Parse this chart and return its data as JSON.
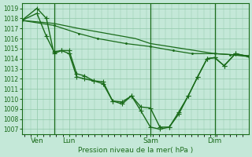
{
  "title": "",
  "xlabel": "Pression niveau de la mer( hPa )",
  "ylabel": "",
  "bg_color": "#c4e8d8",
  "grid_color": "#90c8a8",
  "line_color": "#1a6b1a",
  "tick_label_color": "#1a6b1a",
  "axis_label_color": "#1a6b1a",
  "ylim": [
    1006.5,
    1019.5
  ],
  "yticks": [
    1007,
    1008,
    1009,
    1010,
    1011,
    1012,
    1013,
    1014,
    1015,
    1016,
    1017,
    1018,
    1019
  ],
  "xlim": [
    0,
    120
  ],
  "vline_x": [
    17,
    68,
    102
  ],
  "vline_color": "#1a6b1a",
  "xtick_positions": [
    8,
    25,
    68,
    102
  ],
  "xtick_labels": [
    "Ven",
    "Lun",
    "Sam",
    "Dim"
  ],
  "series": [
    {
      "x": [
        0,
        17,
        30,
        45,
        60,
        68,
        85,
        102,
        120
      ],
      "y": [
        1017.8,
        1017.5,
        1017.0,
        1016.5,
        1016.0,
        1015.5,
        1015.0,
        1014.5,
        1014.3
      ],
      "marker": null,
      "linestyle": "-",
      "linewidth": 0.9
    },
    {
      "x": [
        0,
        17,
        30,
        40,
        55,
        68,
        80,
        90,
        102,
        110,
        120
      ],
      "y": [
        1017.8,
        1017.3,
        1016.5,
        1016.0,
        1015.5,
        1015.2,
        1014.8,
        1014.5,
        1014.5,
        1014.4,
        1014.2
      ],
      "marker": ".",
      "markersize": 2.5,
      "linestyle": "-",
      "linewidth": 0.9
    },
    {
      "x": [
        0,
        8,
        13,
        17,
        21,
        25,
        29,
        33,
        38,
        43,
        48,
        53,
        58,
        63,
        68,
        73,
        78,
        83,
        88,
        93,
        98,
        102,
        107,
        113,
        120
      ],
      "y": [
        1017.8,
        1018.5,
        1016.2,
        1014.7,
        1014.8,
        1014.8,
        1012.5,
        1012.3,
        1011.8,
        1011.7,
        1009.8,
        1009.5,
        1010.3,
        1009.2,
        1009.1,
        1007.2,
        1007.2,
        1008.7,
        1010.3,
        1012.2,
        1014.0,
        1014.1,
        1013.3,
        1014.5,
        1014.2
      ],
      "marker": "+",
      "markersize": 4,
      "linestyle": "-",
      "linewidth": 1.0
    },
    {
      "x": [
        0,
        8,
        13,
        17,
        21,
        25,
        29,
        33,
        38,
        43,
        48,
        53,
        58,
        63,
        68,
        73,
        78,
        83,
        88,
        93,
        98,
        102,
        107,
        113,
        120
      ],
      "y": [
        1017.8,
        1019.0,
        1018.0,
        1014.5,
        1014.8,
        1014.5,
        1012.2,
        1012.0,
        1011.8,
        1011.5,
        1009.8,
        1009.7,
        1010.3,
        1008.8,
        1007.2,
        1007.0,
        1007.2,
        1008.5,
        1010.3,
        1012.2,
        1014.0,
        1014.1,
        1013.3,
        1014.5,
        1014.2
      ],
      "marker": "+",
      "markersize": 4,
      "linestyle": "-",
      "linewidth": 1.0
    }
  ]
}
